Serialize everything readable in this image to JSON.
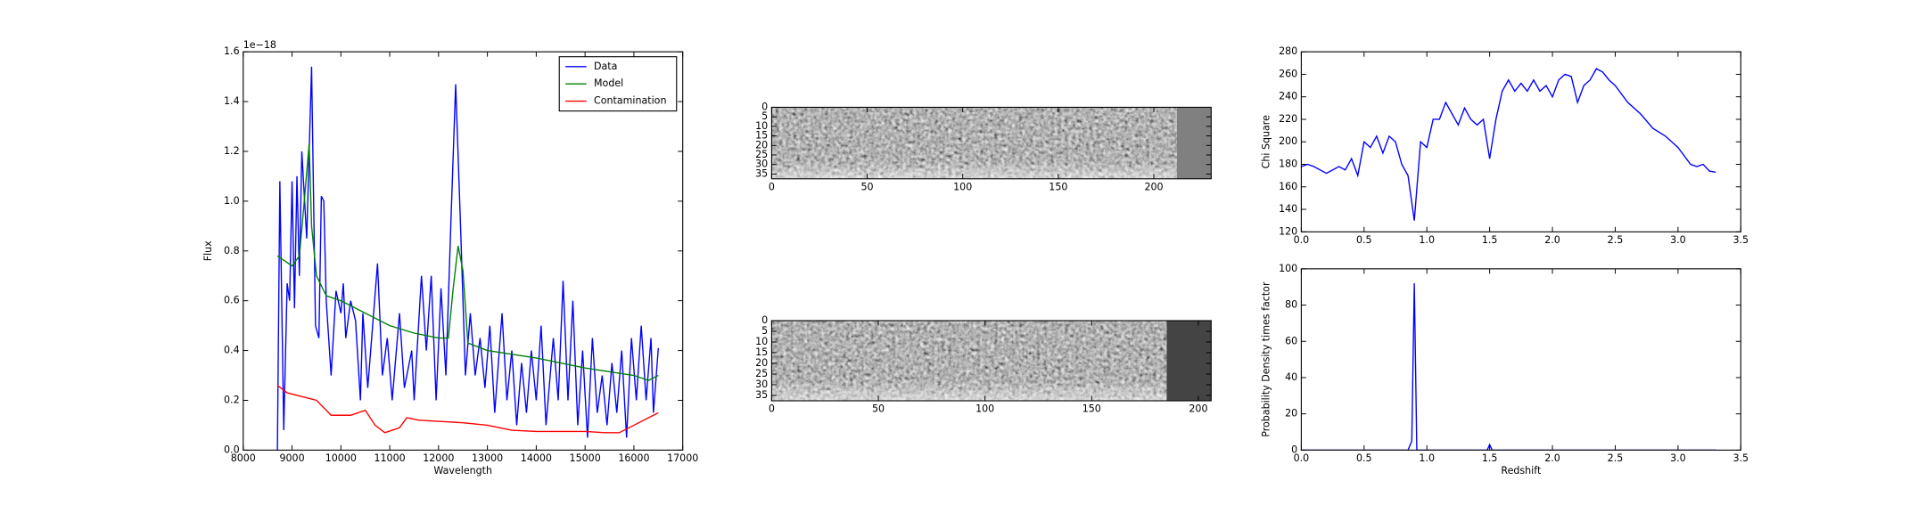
{
  "chart_data": [
    {
      "type": "line",
      "x_label": "Wavelength",
      "y_label": "Flux",
      "y_offset_label": "1e−18",
      "xlim": [
        8000,
        17000
      ],
      "ylim": [
        0,
        1.6
      ],
      "xticks": [
        8000,
        9000,
        10000,
        11000,
        12000,
        13000,
        14000,
        15000,
        16000,
        17000
      ],
      "yticks": [
        {
          "value": 0,
          "label": "0.0"
        },
        0.2,
        0.4,
        0.6,
        0.8,
        {
          "value": 1,
          "label": "1.0"
        },
        1.2,
        1.4,
        1.6
      ],
      "legend": "upper right",
      "series": [
        {
          "name": "Data",
          "color": "#0000ff",
          "x": [
            8700,
            8750,
            8830,
            8900,
            8950,
            9000,
            9050,
            9100,
            9150,
            9200,
            9300,
            9400,
            9480,
            9550,
            9600,
            9650,
            9700,
            9800,
            9900,
            10000,
            10050,
            10100,
            10200,
            10300,
            10400,
            10450,
            10550,
            10650,
            10750,
            10850,
            10950,
            11050,
            11200,
            11300,
            11450,
            11500,
            11650,
            11750,
            11850,
            11950,
            12050,
            12150,
            12250,
            12350,
            12450,
            12550,
            12650,
            12750,
            12850,
            12950,
            13050,
            13150,
            13300,
            13400,
            13500,
            13600,
            13700,
            13800,
            13900,
            14000,
            14100,
            14200,
            14350,
            14450,
            14550,
            14650,
            14750,
            14850,
            14950,
            15050,
            15150,
            15250,
            15350,
            15450,
            15550,
            15650,
            15750,
            15850,
            15950,
            16050,
            16150,
            16250,
            16350,
            16400,
            16500
          ],
          "values": [
            0,
            1.08,
            0.08,
            0.67,
            0.6,
            1.08,
            0.57,
            1.1,
            0.7,
            1.2,
            0.85,
            1.54,
            0.5,
            0.45,
            1.02,
            1.0,
            0.6,
            0.3,
            0.64,
            0.55,
            0.67,
            0.45,
            0.6,
            0.52,
            0.2,
            0.55,
            0.25,
            0.5,
            0.75,
            0.3,
            0.45,
            0.2,
            0.55,
            0.25,
            0.4,
            0.2,
            0.7,
            0.4,
            0.7,
            0.2,
            0.65,
            0.3,
            0.9,
            1.47,
            0.9,
            0.3,
            0.55,
            0.3,
            0.45,
            0.25,
            0.5,
            0.15,
            0.55,
            0.2,
            0.4,
            0.1,
            0.35,
            0.15,
            0.4,
            0.2,
            0.5,
            0.1,
            0.45,
            0.2,
            0.68,
            0.2,
            0.6,
            0.1,
            0.4,
            0.05,
            0.45,
            0.15,
            0.3,
            0.1,
            0.35,
            0.15,
            0.4,
            0.05,
            0.45,
            0.2,
            0.5,
            0.2,
            0.45,
            0.15,
            0.41
          ]
        },
        {
          "name": "Model",
          "color": "#008000",
          "x": [
            8700,
            9000,
            9150,
            9250,
            9350,
            9400,
            9500,
            9700,
            10000,
            10500,
            11000,
            11500,
            12000,
            12200,
            12300,
            12400,
            12500,
            12600,
            13000,
            14000,
            15000,
            16000,
            16300,
            16500
          ],
          "values": [
            0.78,
            0.74,
            0.78,
            1.0,
            1.23,
            0.9,
            0.7,
            0.62,
            0.6,
            0.55,
            0.5,
            0.47,
            0.45,
            0.45,
            0.65,
            0.82,
            0.72,
            0.43,
            0.4,
            0.37,
            0.33,
            0.3,
            0.28,
            0.3
          ]
        },
        {
          "name": "Contamination",
          "color": "#ff0000",
          "x": [
            8700,
            8900,
            9500,
            9700,
            9800,
            10200,
            10500,
            10700,
            10900,
            11200,
            11350,
            11600,
            12500,
            13000,
            13500,
            14000,
            15000,
            15400,
            15700,
            16000,
            16300,
            16500
          ],
          "values": [
            0.26,
            0.23,
            0.2,
            0.16,
            0.14,
            0.14,
            0.16,
            0.1,
            0.07,
            0.09,
            0.13,
            0.12,
            0.11,
            0.1,
            0.08,
            0.075,
            0.075,
            0.07,
            0.07,
            0.1,
            0.13,
            0.15
          ]
        }
      ]
    },
    {
      "type": "image",
      "xlim": [
        0,
        230
      ],
      "ylim": [
        0,
        37.5
      ],
      "image_width": 212,
      "xticks": [
        0,
        50,
        100,
        150,
        200
      ],
      "yticks": [
        0,
        5,
        10,
        15,
        20,
        25,
        30,
        35
      ]
    },
    {
      "type": "image",
      "xlim": [
        0,
        206
      ],
      "ylim": [
        0,
        37.5
      ],
      "image_width": 185,
      "xticks": [
        0,
        50,
        100,
        150,
        200
      ],
      "yticks": [
        0,
        5,
        10,
        15,
        20,
        25,
        30,
        35
      ]
    },
    {
      "type": "line",
      "y_label": "Chi Square",
      "xlim": [
        0,
        3.5
      ],
      "ylim": [
        120,
        280
      ],
      "xticks": [
        {
          "value": 0,
          "label": "0.0"
        },
        0.5,
        {
          "value": 1,
          "label": "1.0"
        },
        1.5,
        {
          "value": 2,
          "label": "2.0"
        },
        2.5,
        {
          "value": 3,
          "label": "3.0"
        },
        3.5
      ],
      "yticks": [
        120,
        140,
        160,
        180,
        200,
        220,
        240,
        260,
        280
      ],
      "series": [
        {
          "color": "#0000ff",
          "x": [
            0,
            0.05,
            0.1,
            0.2,
            0.3,
            0.35,
            0.4,
            0.45,
            0.5,
            0.55,
            0.6,
            0.65,
            0.7,
            0.75,
            0.8,
            0.85,
            0.9,
            0.95,
            1.0,
            1.05,
            1.1,
            1.15,
            1.2,
            1.25,
            1.3,
            1.35,
            1.4,
            1.45,
            1.5,
            1.55,
            1.6,
            1.65,
            1.7,
            1.75,
            1.8,
            1.85,
            1.9,
            1.95,
            2.0,
            2.05,
            2.1,
            2.15,
            2.2,
            2.25,
            2.3,
            2.35,
            2.4,
            2.45,
            2.5,
            2.6,
            2.7,
            2.8,
            2.9,
            3.0,
            3.1,
            3.15,
            3.2,
            3.25,
            3.3
          ],
          "values": [
            178,
            180,
            178,
            172,
            178,
            175,
            185,
            170,
            200,
            195,
            205,
            190,
            205,
            200,
            180,
            170,
            130,
            200,
            195,
            220,
            220,
            235,
            225,
            215,
            230,
            220,
            215,
            220,
            185,
            220,
            245,
            255,
            245,
            252,
            245,
            255,
            245,
            250,
            240,
            255,
            260,
            258,
            235,
            250,
            255,
            265,
            262,
            255,
            250,
            235,
            225,
            212,
            205,
            195,
            180,
            178,
            180,
            174,
            173
          ]
        }
      ]
    },
    {
      "type": "line",
      "x_label": "Redshift",
      "y_label": "Probability Density times factor",
      "xlim": [
        0,
        3.5
      ],
      "ylim": [
        0,
        100
      ],
      "xticks": [
        {
          "value": 0,
          "label": "0.0"
        },
        0.5,
        {
          "value": 1,
          "label": "1.0"
        },
        1.5,
        {
          "value": 2,
          "label": "2.0"
        },
        2.5,
        {
          "value": 3,
          "label": "3.0"
        },
        3.5
      ],
      "yticks": [
        0,
        20,
        40,
        60,
        80,
        100
      ],
      "series": [
        {
          "color": "#0000ff",
          "x": [
            0,
            0.85,
            0.88,
            0.9,
            0.92,
            1.48,
            1.5,
            1.52,
            3.3
          ],
          "values": [
            0,
            0,
            5,
            92,
            0,
            0,
            3,
            0,
            0
          ]
        }
      ]
    }
  ]
}
